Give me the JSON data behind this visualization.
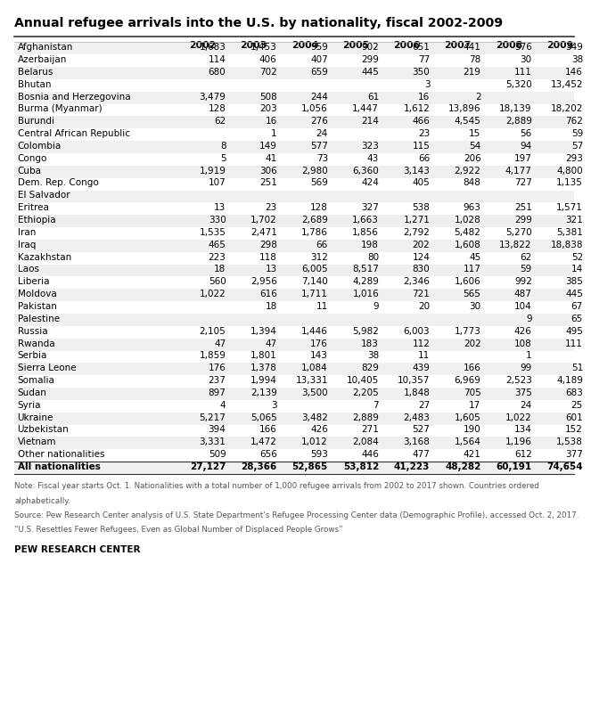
{
  "title": "Annual refugee arrivals into the U.S. by nationality, fiscal 2002-2009",
  "years": [
    "2002",
    "2003",
    "2004",
    "2005",
    "2006",
    "2007",
    "2008",
    "2009"
  ],
  "rows": [
    {
      "country": "Afghanistan",
      "values": [
        "1,683",
        "1,453",
        "959",
        "902",
        "651",
        "441",
        "576",
        "349"
      ]
    },
    {
      "country": "Azerbaijan",
      "values": [
        "114",
        "406",
        "407",
        "299",
        "77",
        "78",
        "30",
        "38"
      ]
    },
    {
      "country": "Belarus",
      "values": [
        "680",
        "702",
        "659",
        "445",
        "350",
        "219",
        "111",
        "146"
      ]
    },
    {
      "country": "Bhutan",
      "values": [
        "",
        "",
        "",
        "",
        "3",
        "",
        "5,320",
        "13,452"
      ]
    },
    {
      "country": "Bosnia and Herzegovina",
      "values": [
        "3,479",
        "508",
        "244",
        "61",
        "16",
        "2",
        "",
        ""
      ]
    },
    {
      "country": "Burma (Myanmar)",
      "values": [
        "128",
        "203",
        "1,056",
        "1,447",
        "1,612",
        "13,896",
        "18,139",
        "18,202"
      ]
    },
    {
      "country": "Burundi",
      "values": [
        "62",
        "16",
        "276",
        "214",
        "466",
        "4,545",
        "2,889",
        "762"
      ]
    },
    {
      "country": "Central African Republic",
      "values": [
        "",
        "1",
        "24",
        "",
        "23",
        "15",
        "56",
        "59"
      ]
    },
    {
      "country": "Colombia",
      "values": [
        "8",
        "149",
        "577",
        "323",
        "115",
        "54",
        "94",
        "57"
      ]
    },
    {
      "country": "Congo",
      "values": [
        "5",
        "41",
        "73",
        "43",
        "66",
        "206",
        "197",
        "293"
      ]
    },
    {
      "country": "Cuba",
      "values": [
        "1,919",
        "306",
        "2,980",
        "6,360",
        "3,143",
        "2,922",
        "4,177",
        "4,800"
      ]
    },
    {
      "country": "Dem. Rep. Congo",
      "values": [
        "107",
        "251",
        "569",
        "424",
        "405",
        "848",
        "727",
        "1,135"
      ]
    },
    {
      "country": "El Salvador",
      "values": [
        "",
        "",
        "",
        "",
        "",
        "",
        "",
        ""
      ]
    },
    {
      "country": "Eritrea",
      "values": [
        "13",
        "23",
        "128",
        "327",
        "538",
        "963",
        "251",
        "1,571"
      ]
    },
    {
      "country": "Ethiopia",
      "values": [
        "330",
        "1,702",
        "2,689",
        "1,663",
        "1,271",
        "1,028",
        "299",
        "321"
      ]
    },
    {
      "country": "Iran",
      "values": [
        "1,535",
        "2,471",
        "1,786",
        "1,856",
        "2,792",
        "5,482",
        "5,270",
        "5,381"
      ]
    },
    {
      "country": "Iraq",
      "values": [
        "465",
        "298",
        "66",
        "198",
        "202",
        "1,608",
        "13,822",
        "18,838"
      ]
    },
    {
      "country": "Kazakhstan",
      "values": [
        "223",
        "118",
        "312",
        "80",
        "124",
        "45",
        "62",
        "52"
      ]
    },
    {
      "country": "Laos",
      "values": [
        "18",
        "13",
        "6,005",
        "8,517",
        "830",
        "117",
        "59",
        "14"
      ]
    },
    {
      "country": "Liberia",
      "values": [
        "560",
        "2,956",
        "7,140",
        "4,289",
        "2,346",
        "1,606",
        "992",
        "385"
      ]
    },
    {
      "country": "Moldova",
      "values": [
        "1,022",
        "616",
        "1,711",
        "1,016",
        "721",
        "565",
        "487",
        "445"
      ]
    },
    {
      "country": "Pakistan",
      "values": [
        "",
        "18",
        "11",
        "9",
        "20",
        "30",
        "104",
        "67"
      ]
    },
    {
      "country": "Palestine",
      "values": [
        "",
        "",
        "",
        "",
        "",
        "",
        "9",
        "65"
      ]
    },
    {
      "country": "Russia",
      "values": [
        "2,105",
        "1,394",
        "1,446",
        "5,982",
        "6,003",
        "1,773",
        "426",
        "495"
      ]
    },
    {
      "country": "Rwanda",
      "values": [
        "47",
        "47",
        "176",
        "183",
        "112",
        "202",
        "108",
        "111"
      ]
    },
    {
      "country": "Serbia",
      "values": [
        "1,859",
        "1,801",
        "143",
        "38",
        "11",
        "",
        "1",
        ""
      ]
    },
    {
      "country": "Sierra Leone",
      "values": [
        "176",
        "1,378",
        "1,084",
        "829",
        "439",
        "166",
        "99",
        "51"
      ]
    },
    {
      "country": "Somalia",
      "values": [
        "237",
        "1,994",
        "13,331",
        "10,405",
        "10,357",
        "6,969",
        "2,523",
        "4,189"
      ]
    },
    {
      "country": "Sudan",
      "values": [
        "897",
        "2,139",
        "3,500",
        "2,205",
        "1,848",
        "705",
        "375",
        "683"
      ]
    },
    {
      "country": "Syria",
      "values": [
        "4",
        "3",
        "",
        "7",
        "27",
        "17",
        "24",
        "25"
      ]
    },
    {
      "country": "Ukraine",
      "values": [
        "5,217",
        "5,065",
        "3,482",
        "2,889",
        "2,483",
        "1,605",
        "1,022",
        "601"
      ]
    },
    {
      "country": "Uzbekistan",
      "values": [
        "394",
        "166",
        "426",
        "271",
        "527",
        "190",
        "134",
        "152"
      ]
    },
    {
      "country": "Vietnam",
      "values": [
        "3,331",
        "1,472",
        "1,012",
        "2,084",
        "3,168",
        "1,564",
        "1,196",
        "1,538"
      ]
    },
    {
      "country": "Other nationalities",
      "values": [
        "509",
        "656",
        "593",
        "446",
        "477",
        "421",
        "612",
        "377"
      ]
    },
    {
      "country": "All nationalities",
      "values": [
        "27,127",
        "28,366",
        "52,865",
        "53,812",
        "41,223",
        "48,282",
        "60,191",
        "74,654"
      ],
      "bold": true
    }
  ],
  "note_line1": "Note: Fiscal year starts Oct. 1. Nationalities with a total number of 1,000 refugee arrivals from 2002 to 2017 shown. Countries ordered",
  "note_line2": "alphabetically.",
  "source_line": "Source: Pew Research Center analysis of U.S. State Department's Refugee Processing Center data (Demographic Profile), accessed Oct. 2, 2017.",
  "link_line": "“U.S. Resettles Fewer Refugees, Even as Global Number of Displaced People Grows”",
  "footer": "PEW RESEARCH CENTER",
  "bg_color": "#ffffff",
  "odd_row_color": "#f0f0f0",
  "even_row_color": "#ffffff"
}
